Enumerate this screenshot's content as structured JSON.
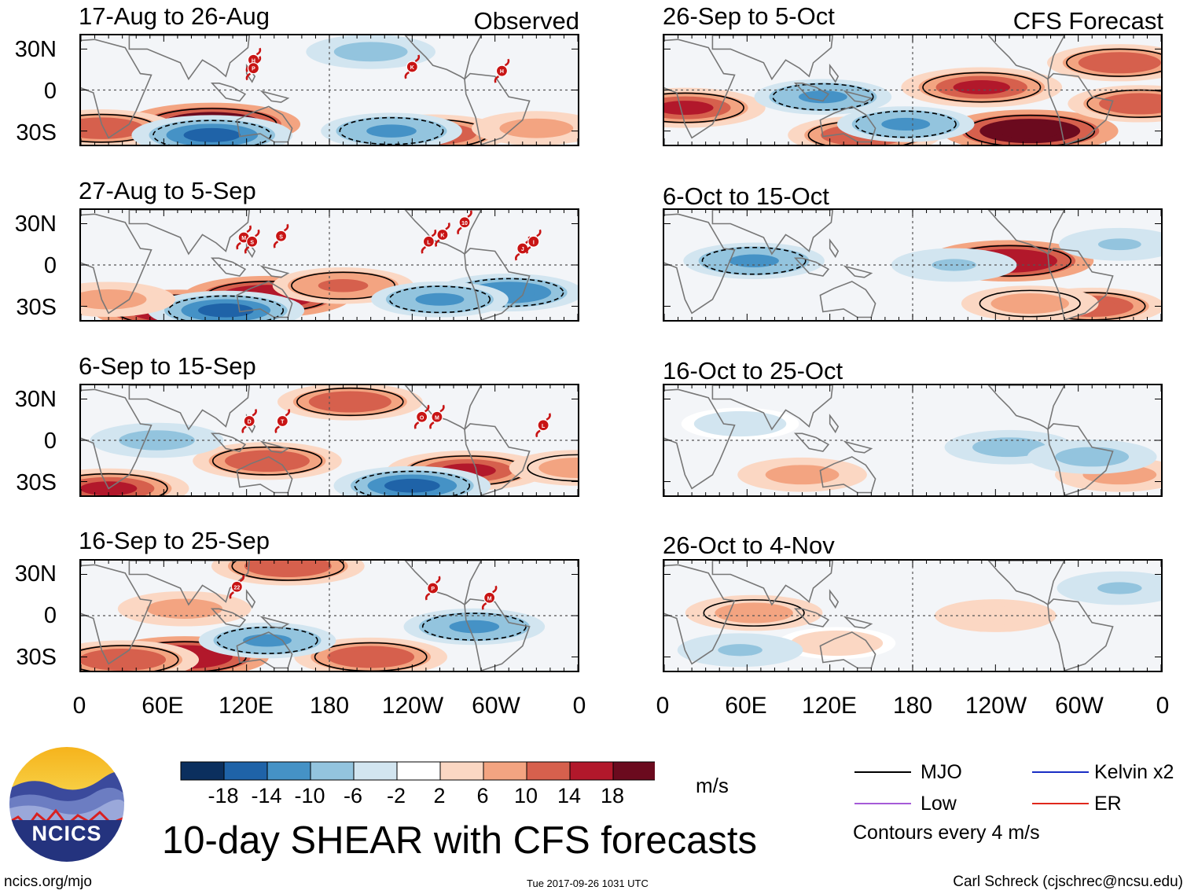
{
  "figure": {
    "title": "10-day SHEAR with CFS forecasts",
    "logo_text": "NCICS",
    "url": "ncics.org/mjo",
    "timestamp": "Tue 2017-09-26 1031 UTC",
    "credit": "Carl Schreck (cjschrec@ncsu.edu)",
    "observed_label": "Observed",
    "forecast_label": "CFS Forecast"
  },
  "axes": {
    "y_ticks": [
      "30N",
      "0",
      "30S"
    ],
    "x_ticks": [
      "0",
      "60E",
      "120E",
      "180",
      "120W",
      "60W",
      "0"
    ]
  },
  "colorbar": {
    "units": "m/s",
    "tick_labels": [
      "-18",
      "-14",
      "-10",
      "-6",
      "-2",
      "2",
      "6",
      "10",
      "14",
      "18"
    ],
    "colors": [
      "#0b2f5e",
      "#1f63a8",
      "#4592c6",
      "#93c4de",
      "#d2e5f0",
      "#ffffff",
      "#fbd7c3",
      "#f3a481",
      "#d6604d",
      "#b2182b",
      "#6b0a1e"
    ]
  },
  "legend": {
    "items": [
      {
        "label": "MJO",
        "color": "#000000"
      },
      {
        "label": "Kelvin x2",
        "color": "#1a2ec4"
      },
      {
        "label": "Low",
        "color": "#a55ad8"
      },
      {
        "label": "ER",
        "color": "#e0281c"
      }
    ],
    "contour_note": "Contours every 4 m/s"
  },
  "chart_data": [
    {
      "type": "heatmap",
      "title": "17-Aug to 26-Aug",
      "group": "Observed",
      "xlim": [
        0,
        360
      ],
      "ylim": [
        -40,
        40
      ],
      "storms": [
        {
          "label": "H",
          "lon": 125,
          "lat": 22
        },
        {
          "label": "P",
          "lon": 125,
          "lat": 16
        },
        {
          "label": "K",
          "lon": 240,
          "lat": 17
        },
        {
          "label": "H",
          "lon": 305,
          "lat": 14
        }
      ],
      "blobs": [
        {
          "lon": 95,
          "lat": -25,
          "v": 22
        },
        {
          "lon": 15,
          "lat": -28,
          "v": 13
        },
        {
          "lon": 255,
          "lat": -32,
          "v": 14
        },
        {
          "lon": 95,
          "lat": -33,
          "v": -16
        },
        {
          "lon": 225,
          "lat": -30,
          "v": -11
        },
        {
          "lon": 210,
          "lat": 28,
          "v": -8
        },
        {
          "lon": 330,
          "lat": -28,
          "v": 8
        }
      ]
    },
    {
      "type": "heatmap",
      "title": "27-Aug to 5-Sep",
      "group": "Observed",
      "xlim": [
        0,
        360
      ],
      "ylim": [
        -40,
        40
      ],
      "storms": [
        {
          "label": "M",
          "lon": 118,
          "lat": 20
        },
        {
          "label": "S",
          "lon": 124,
          "lat": 17
        },
        {
          "label": "S",
          "lon": 145,
          "lat": 21
        },
        {
          "label": "L",
          "lon": 252,
          "lat": 17
        },
        {
          "label": "K",
          "lon": 262,
          "lat": 22
        },
        {
          "label": "10",
          "lon": 278,
          "lat": 31
        },
        {
          "label": "J",
          "lon": 320,
          "lat": 12
        },
        {
          "label": "I",
          "lon": 328,
          "lat": 17
        }
      ],
      "blobs": [
        {
          "lon": 135,
          "lat": -23,
          "v": 18
        },
        {
          "lon": 70,
          "lat": -33,
          "v": 18
        },
        {
          "lon": 105,
          "lat": -33,
          "v": -15
        },
        {
          "lon": 190,
          "lat": -15,
          "v": 11
        },
        {
          "lon": 310,
          "lat": -20,
          "v": -13
        },
        {
          "lon": 260,
          "lat": -25,
          "v": -10
        },
        {
          "lon": 20,
          "lat": -25,
          "v": 9
        }
      ]
    },
    {
      "type": "heatmap",
      "title": "6-Sep to 15-Sep",
      "group": "Observed",
      "xlim": [
        0,
        360
      ],
      "ylim": [
        -40,
        40
      ],
      "storms": [
        {
          "label": "D",
          "lon": 122,
          "lat": 14
        },
        {
          "label": "T",
          "lon": 146,
          "lat": 14
        },
        {
          "label": "O",
          "lon": 247,
          "lat": 17
        },
        {
          "label": "M",
          "lon": 258,
          "lat": 17
        },
        {
          "label": "L",
          "lon": 335,
          "lat": 11
        }
      ],
      "blobs": [
        {
          "lon": 20,
          "lat": -35,
          "v": 16
        },
        {
          "lon": 135,
          "lat": -15,
          "v": 13
        },
        {
          "lon": 280,
          "lat": -22,
          "v": 16
        },
        {
          "lon": 240,
          "lat": -33,
          "v": -15
        },
        {
          "lon": 195,
          "lat": 28,
          "v": 12
        },
        {
          "lon": 55,
          "lat": 0,
          "v": -9
        },
        {
          "lon": 360,
          "lat": -20,
          "v": 10
        }
      ]
    },
    {
      "type": "heatmap",
      "title": "16-Sep to 25-Sep",
      "group": "Observed",
      "xlim": [
        0,
        360
      ],
      "ylim": [
        -40,
        40
      ],
      "storms": [
        {
          "label": "22",
          "lon": 113,
          "lat": 21
        },
        {
          "label": "P",
          "lon": 255,
          "lat": 20
        },
        {
          "label": "M",
          "lon": 296,
          "lat": 13
        }
      ],
      "blobs": [
        {
          "lon": 75,
          "lat": -30,
          "v": 18
        },
        {
          "lon": 30,
          "lat": -32,
          "v": 14
        },
        {
          "lon": 210,
          "lat": -30,
          "v": 14
        },
        {
          "lon": 150,
          "lat": 36,
          "v": 14
        },
        {
          "lon": 135,
          "lat": -18,
          "v": -10
        },
        {
          "lon": 285,
          "lat": -8,
          "v": -11
        },
        {
          "lon": 75,
          "lat": 5,
          "v": 9
        }
      ]
    },
    {
      "type": "heatmap",
      "title": "26-Sep to 5-Oct",
      "group": "CFS Forecast",
      "xlim": [
        0,
        360
      ],
      "ylim": [
        -40,
        40
      ],
      "storms": [],
      "blobs": [
        {
          "lon": 265,
          "lat": -30,
          "v": 22
        },
        {
          "lon": 230,
          "lat": 2,
          "v": 16
        },
        {
          "lon": 15,
          "lat": -13,
          "v": 16
        },
        {
          "lon": 145,
          "lat": -33,
          "v": 14
        },
        {
          "lon": 330,
          "lat": 20,
          "v": 12
        },
        {
          "lon": 345,
          "lat": -10,
          "v": 12
        },
        {
          "lon": 115,
          "lat": -5,
          "v": -10
        },
        {
          "lon": 175,
          "lat": -25,
          "v": -10
        }
      ]
    },
    {
      "type": "heatmap",
      "title": "6-Oct to 15-Oct",
      "group": "CFS Forecast",
      "xlim": [
        0,
        360
      ],
      "ylim": [
        -40,
        40
      ],
      "storms": [],
      "blobs": [
        {
          "lon": 250,
          "lat": 3,
          "v": 18
        },
        {
          "lon": 310,
          "lat": -30,
          "v": 12
        },
        {
          "lon": 265,
          "lat": -28,
          "v": 10
        },
        {
          "lon": 65,
          "lat": 3,
          "v": -11
        },
        {
          "lon": 210,
          "lat": 0,
          "v": -7
        },
        {
          "lon": 330,
          "lat": 15,
          "v": -6
        }
      ]
    },
    {
      "type": "heatmap",
      "title": "16-Oct to 25-Oct",
      "group": "CFS Forecast",
      "xlim": [
        0,
        360
      ],
      "ylim": [
        -40,
        40
      ],
      "storms": [],
      "blobs": [
        {
          "lon": 100,
          "lat": -25,
          "v": 8
        },
        {
          "lon": 330,
          "lat": -25,
          "v": 8
        },
        {
          "lon": 250,
          "lat": -5,
          "v": -8
        },
        {
          "lon": 310,
          "lat": -12,
          "v": -8
        },
        {
          "lon": 55,
          "lat": 12,
          "v": -5
        }
      ]
    },
    {
      "type": "heatmap",
      "title": "26-Oct to 4-Nov",
      "group": "CFS Forecast",
      "xlim": [
        0,
        360
      ],
      "ylim": [
        -40,
        40
      ],
      "storms": [],
      "blobs": [
        {
          "lon": 65,
          "lat": 2,
          "v": 10
        },
        {
          "lon": 240,
          "lat": 0,
          "v": 6
        },
        {
          "lon": 125,
          "lat": -20,
          "v": 5
        },
        {
          "lon": 55,
          "lat": -25,
          "v": -7
        },
        {
          "lon": 330,
          "lat": 20,
          "v": -7
        }
      ]
    }
  ]
}
